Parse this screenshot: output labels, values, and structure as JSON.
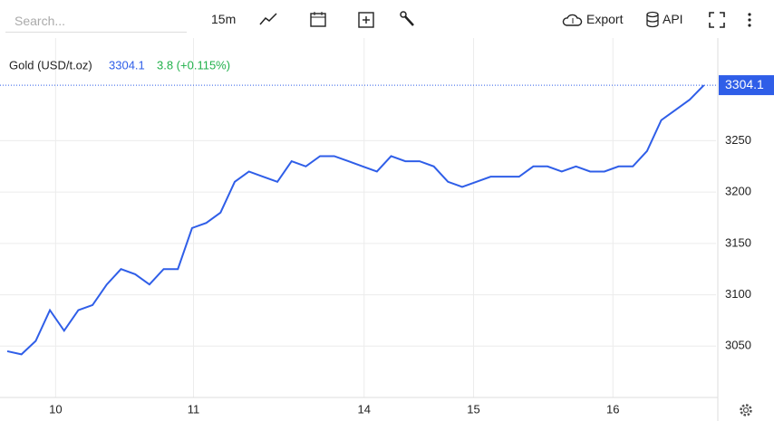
{
  "toolbar": {
    "search_placeholder": "Search...",
    "interval": "15m",
    "export": "Export",
    "api": "API"
  },
  "chart_data": {
    "type": "line",
    "legend": {
      "symbol": "Gold (USD/t.oz)",
      "last_price": 3304.1,
      "change": "3.8 (+0.115%)"
    },
    "x": [
      0,
      2,
      4,
      6,
      8,
      10,
      12,
      14,
      16,
      18,
      20,
      22,
      24,
      26,
      28,
      30,
      32,
      34,
      36,
      38,
      40,
      42,
      44,
      46,
      48,
      50,
      52,
      54,
      56,
      58,
      60,
      62,
      64,
      66,
      68,
      70,
      72,
      74,
      76,
      78,
      80,
      82,
      84,
      86,
      88,
      90,
      92,
      94,
      96,
      98
    ],
    "series": [
      {
        "name": "Gold (USD/t.oz)",
        "color": "#2f5ee8",
        "values": [
          3045,
          3042,
          3055,
          3085,
          3065,
          3085,
          3090,
          3110,
          3125,
          3120,
          3110,
          3125,
          3125,
          3165,
          3170,
          3180,
          3210,
          3220,
          3215,
          3210,
          3230,
          3225,
          3235,
          3235,
          3230,
          3225,
          3220,
          3235,
          3230,
          3230,
          3225,
          3210,
          3205,
          3210,
          3215,
          3215,
          3215,
          3225,
          3225,
          3220,
          3225,
          3220,
          3220,
          3225,
          3225,
          3240,
          3270,
          3280,
          3290,
          3304.1
        ]
      }
    ],
    "xlim": [
      0,
      99.7
    ],
    "xticks": [
      {
        "value": 6.8,
        "label": "10"
      },
      {
        "value": 26.2,
        "label": "11"
      },
      {
        "value": 50.2,
        "label": "14"
      },
      {
        "value": 65.6,
        "label": "15"
      },
      {
        "value": 85.2,
        "label": "16"
      }
    ],
    "ylim": [
      3000,
      3350
    ],
    "yticks": [
      3050,
      3100,
      3150,
      3200,
      3250
    ],
    "grid": true
  }
}
